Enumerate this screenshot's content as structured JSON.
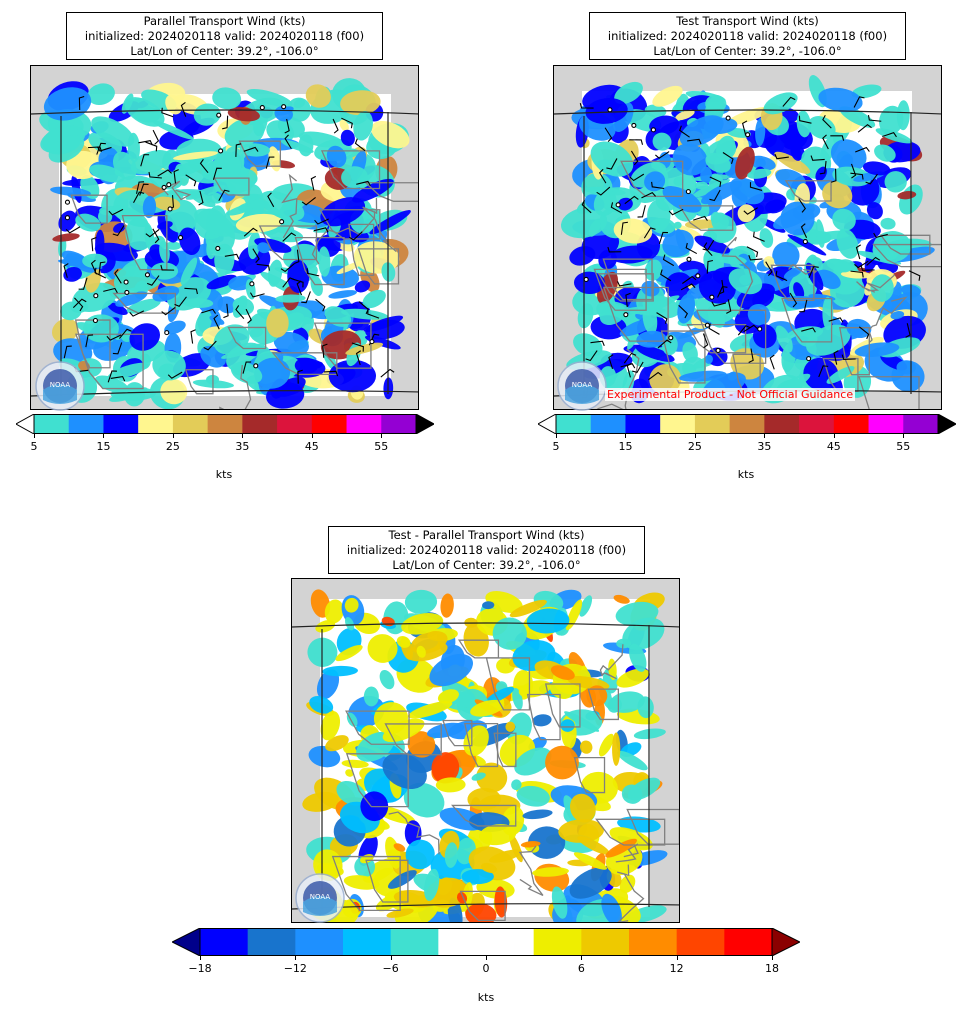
{
  "panels": {
    "parallel": {
      "title": "Parallel Transport Wind (kts)",
      "init_line": "initialized: 2024020118 valid: 2024020118 (f00)",
      "center_line": "Lat/Lon of Center: 39.2°, -106.0°",
      "colorbar": {
        "colors": [
          "#40e0d0",
          "#1e90ff",
          "#0000ff",
          "#fff68f",
          "#e3cc58",
          "#cd853f",
          "#a52a2a",
          "#dc143c",
          "#ff0000",
          "#ff00ff",
          "#9400d3"
        ],
        "under_color": "#ffffff",
        "over_color": "#000000",
        "ticks": [
          "5",
          "15",
          "25",
          "35",
          "45",
          "55"
        ],
        "unit": "kts"
      }
    },
    "test": {
      "title": "Test Transport Wind (kts)",
      "init_line": "initialized: 2024020118 valid: 2024020118 (f00)",
      "center_line": "Lat/Lon of Center: 39.2°, -106.0°",
      "disclaimer": "Experimental Product - Not Official Guidance",
      "colorbar": {
        "colors": [
          "#40e0d0",
          "#1e90ff",
          "#0000ff",
          "#fff68f",
          "#e3cc58",
          "#cd853f",
          "#a52a2a",
          "#dc143c",
          "#ff0000",
          "#ff00ff",
          "#9400d3"
        ],
        "under_color": "#ffffff",
        "over_color": "#000000",
        "ticks": [
          "5",
          "15",
          "25",
          "35",
          "45",
          "55"
        ],
        "unit": "kts"
      }
    },
    "diff": {
      "title": "Test - Parallel Transport Wind (kts)",
      "init_line": "initialized: 2024020118 valid: 2024020118 (f00)",
      "center_line": "Lat/Lon of Center: 39.2°, -106.0°",
      "colorbar": {
        "colors": [
          "#0000ff",
          "#1874cd",
          "#1e90ff",
          "#00bfff",
          "#40e0d0",
          "#ffffff",
          "#ffffff",
          "#eeee00",
          "#eec900",
          "#ff8c00",
          "#ff4500",
          "#ff0000"
        ],
        "under_color": "#00008b",
        "over_color": "#8b0000",
        "ticks": [
          "−18",
          "−12",
          "−6",
          "0",
          "6",
          "12",
          "18"
        ],
        "unit": "kts"
      }
    }
  },
  "logo_text": "NOAA"
}
